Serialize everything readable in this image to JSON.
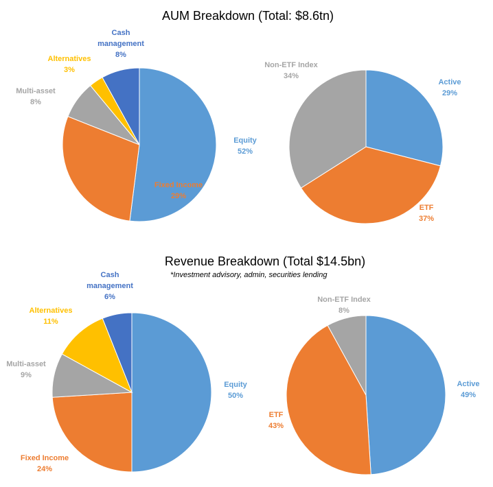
{
  "colors": {
    "equity": "#5B9BD5",
    "fixed_income": "#ED7D31",
    "multi_asset": "#A5A5A5",
    "alternatives": "#FFC000",
    "cash_management": "#4472C4",
    "active": "#5B9BD5",
    "etf": "#ED7D31",
    "non_etf_index": "#A5A5A5"
  },
  "sections": {
    "aum": {
      "title": "AUM Breakdown (Total: $8.6tn)"
    },
    "revenue": {
      "title": "Revenue Breakdown (Total $14.5bn)",
      "subtitle": "*Investment advisory, admin, securities lending"
    }
  },
  "chart_data": [
    {
      "type": "pie",
      "group": "aum",
      "slices": [
        {
          "name": "Equity",
          "label_lines": [
            "Equity"
          ],
          "value": 52,
          "value_label": "52%",
          "color": "#5B9BD5"
        },
        {
          "name": "Fixed Income",
          "label_lines": [
            "Fixed Income"
          ],
          "value": 29,
          "value_label": "29%",
          "color": "#ED7D31"
        },
        {
          "name": "Multi-asset",
          "label_lines": [
            "Multi-asset"
          ],
          "value": 8,
          "value_label": "8%",
          "color": "#A5A5A5"
        },
        {
          "name": "Alternatives",
          "label_lines": [
            "Alternatives"
          ],
          "value": 3,
          "value_label": "3%",
          "color": "#FFC000"
        },
        {
          "name": "Cash management",
          "label_lines": [
            "Cash",
            "management"
          ],
          "value": 8,
          "value_label": "8%",
          "color": "#4472C4"
        }
      ]
    },
    {
      "type": "pie",
      "group": "aum",
      "slices": [
        {
          "name": "Active",
          "label_lines": [
            "Active"
          ],
          "value": 29,
          "value_label": "29%",
          "color": "#5B9BD5"
        },
        {
          "name": "ETF",
          "label_lines": [
            "ETF"
          ],
          "value": 37,
          "value_label": "37%",
          "color": "#ED7D31"
        },
        {
          "name": "Non-ETF Index",
          "label_lines": [
            "Non-ETF Index"
          ],
          "value": 34,
          "value_label": "34%",
          "color": "#A5A5A5"
        }
      ]
    },
    {
      "type": "pie",
      "group": "revenue",
      "slices": [
        {
          "name": "Equity",
          "label_lines": [
            "Equity"
          ],
          "value": 50,
          "value_label": "50%",
          "color": "#5B9BD5"
        },
        {
          "name": "Fixed Income",
          "label_lines": [
            "Fixed Income"
          ],
          "value": 24,
          "value_label": "24%",
          "color": "#ED7D31"
        },
        {
          "name": "Multi-asset",
          "label_lines": [
            "Multi-asset"
          ],
          "value": 9,
          "value_label": "9%",
          "color": "#A5A5A5"
        },
        {
          "name": "Alternatives",
          "label_lines": [
            "Alternatives"
          ],
          "value": 11,
          "value_label": "11%",
          "color": "#FFC000"
        },
        {
          "name": "Cash management",
          "label_lines": [
            "Cash",
            "management"
          ],
          "value": 6,
          "value_label": "6%",
          "color": "#4472C4"
        }
      ]
    },
    {
      "type": "pie",
      "group": "revenue",
      "slices": [
        {
          "name": "Active",
          "label_lines": [
            "Active"
          ],
          "value": 49,
          "value_label": "49%",
          "color": "#5B9BD5"
        },
        {
          "name": "ETF",
          "label_lines": [
            "ETF"
          ],
          "value": 43,
          "value_label": "43%",
          "color": "#ED7D31"
        },
        {
          "name": "Non-ETF Index",
          "label_lines": [
            "Non-ETF Index"
          ],
          "value": 8,
          "value_label": "8%",
          "color": "#A5A5A5"
        }
      ]
    }
  ]
}
